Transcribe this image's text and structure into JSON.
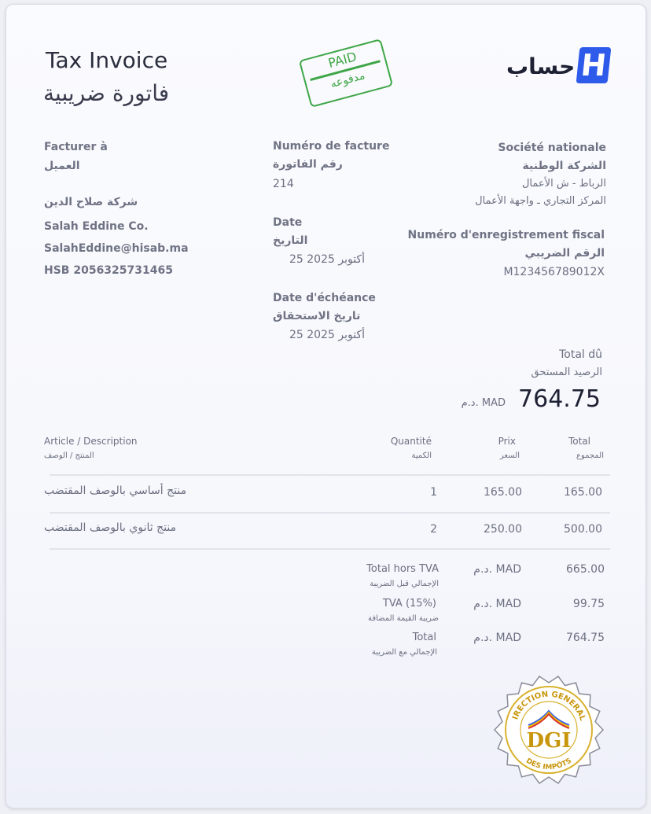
{
  "header": {
    "title_en": "Tax Invoice",
    "title_ar": "فاتورة ضريبية",
    "logo_text": "حساب",
    "logo_letter": "H",
    "brand_color": "#2f5bea"
  },
  "paid_stamp": {
    "en": "PAID",
    "ar": "مدفوعه",
    "color": "#3fa648"
  },
  "bill_to": {
    "label_fr": "Facturer à",
    "label_ar": "العميل",
    "company_ar": "شركة صلاح الدين",
    "company_en": "Salah Eddine Co.",
    "email": "SalahEddine@hisab.ma",
    "tax_id": "HSB 2056325731465"
  },
  "invoice": {
    "number_label_fr": "Numéro de facture",
    "number_label_ar": "رقم الفاتورة",
    "number": "214",
    "date_label_fr": "Date",
    "date_label_ar": "التاريخ",
    "date": "25 أكتوبر 2025",
    "due_label_fr": "Date d'échéance",
    "due_label_ar": "تاريخ الاستحقاق",
    "due_date": "25 أكتوبر 2025"
  },
  "seller": {
    "name_fr": "Société nationale",
    "name_ar": "الشركة الوطنية",
    "address1": "الرباط - ش الأعمال",
    "address2": "المركز التجاري ـ واجهة الأعمال",
    "fiscal_label_fr": "Numéro d'enregistrement fiscal",
    "fiscal_label_ar": "الرقم الضريبي",
    "fiscal_id": "M123456789012X"
  },
  "total_due": {
    "label_fr": "Total dû",
    "label_ar": "الرصيد المستحق",
    "currency": "د.م. MAD",
    "amount": "764.75"
  },
  "table": {
    "headers": [
      {
        "fr": "Article / Description",
        "ar": "المنتج / الوصف"
      },
      {
        "fr": "Quantité",
        "ar": "الكمية"
      },
      {
        "fr": "Prix",
        "ar": "السعر"
      },
      {
        "fr": "Total",
        "ar": "المجموع"
      }
    ],
    "rows": [
      {
        "desc": "منتج أساسي بالوصف المقتضب",
        "qty": "1",
        "price": "165.00",
        "total": "165.00"
      },
      {
        "desc": "منتج ثانوي بالوصف المقتضب",
        "qty": "2",
        "price": "250.00",
        "total": "500.00"
      }
    ]
  },
  "summary": [
    {
      "fr": "Total hors TVA",
      "ar": "الإجمالي قبل الضريبة",
      "currency": "د.م. MAD",
      "amount": "665.00"
    },
    {
      "fr": "TVA (15%)",
      "ar": "ضريبة القيمة المضافة",
      "currency": "د.م. MAD",
      "amount": "99.75"
    },
    {
      "fr": "Total",
      "ar": "الإجمالي مع الضريبة",
      "currency": "د.م. MAD",
      "amount": "764.75"
    }
  ],
  "seal": {
    "top": "DIRECTION GENERALE",
    "center": "DGI",
    "bottom": "DES IMPÔTS",
    "color": "#c8960c"
  }
}
